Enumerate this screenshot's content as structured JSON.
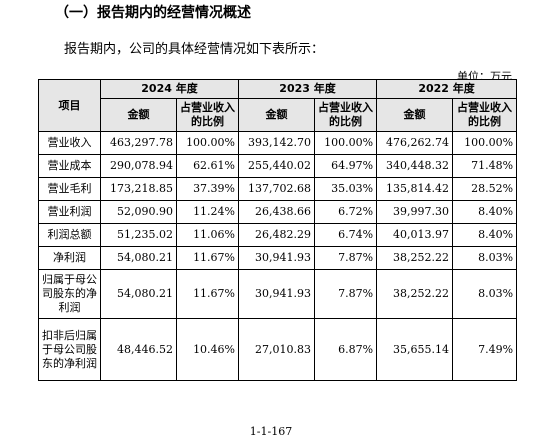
{
  "section_title": "（一）报告期内的经营情况概述",
  "intro": "报告期内，公司的具体经营情况如下表所示：",
  "unit": "单位：万元",
  "table": {
    "item_header": "项目",
    "years": [
      "2024 年度",
      "2023 年度",
      "2022 年度"
    ],
    "amount_header": "金额",
    "ratio_header": "占营业收入的比例",
    "rows": [
      {
        "label": "营业收入",
        "values": [
          "463,297.78",
          "100.00%",
          "393,142.70",
          "100.00%",
          "476,262.74",
          "100.00%"
        ]
      },
      {
        "label": "营业成本",
        "values": [
          "290,078.94",
          "62.61%",
          "255,440.02",
          "64.97%",
          "340,448.32",
          "71.48%"
        ]
      },
      {
        "label": "营业毛利",
        "values": [
          "173,218.85",
          "37.39%",
          "137,702.68",
          "35.03%",
          "135,814.42",
          "28.52%"
        ]
      },
      {
        "label": "营业利润",
        "values": [
          "52,090.90",
          "11.24%",
          "26,438.66",
          "6.72%",
          "39,997.30",
          "8.40%"
        ]
      },
      {
        "label": "利润总额",
        "values": [
          "51,235.02",
          "11.06%",
          "26,482.29",
          "6.74%",
          "40,013.97",
          "8.40%"
        ]
      },
      {
        "label": "净利润",
        "values": [
          "54,080.21",
          "11.67%",
          "30,941.93",
          "7.87%",
          "38,252.22",
          "8.03%"
        ]
      },
      {
        "label": "归属于母公司股东的净利润",
        "values": [
          "54,080.21",
          "11.67%",
          "30,941.93",
          "7.87%",
          "38,252.22",
          "8.03%"
        ]
      },
      {
        "label": "扣非后归属于母公司股东的净利润",
        "values": [
          "48,446.52",
          "10.46%",
          "27,010.83",
          "6.87%",
          "35,655.14",
          "7.49%"
        ]
      }
    ]
  },
  "page_number": "1-1-167"
}
